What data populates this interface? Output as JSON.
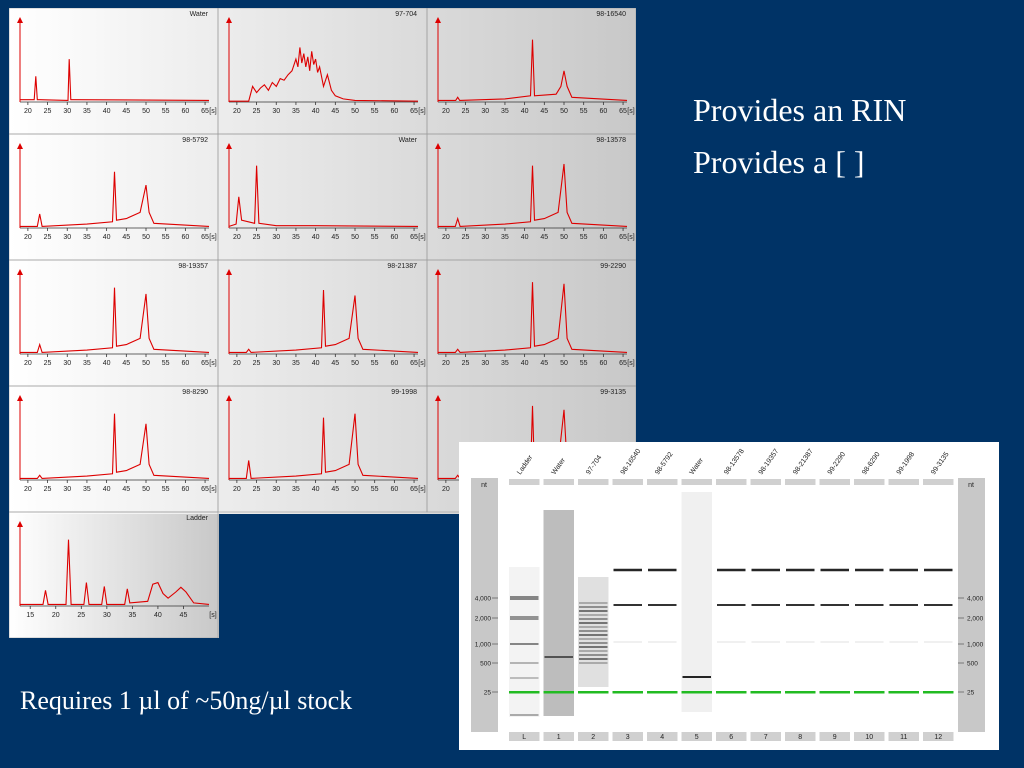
{
  "slide": {
    "bullets": [
      "Provides an RIN",
      "Provides a [ ]"
    ],
    "footer": "Requires 1 µl of ~50ng/µl stock"
  },
  "colors": {
    "background": "#003366",
    "trace": "#dd0000",
    "marker_band": "#22bb22",
    "plot_bg_light": "#ffffff",
    "plot_bg_dark": "#c8c8c8"
  },
  "chart_data": [
    {
      "type": "line",
      "title": "Water",
      "x_ticks": [
        20,
        25,
        30,
        35,
        40,
        45,
        50,
        55,
        60,
        65
      ],
      "x_unit": "[s]",
      "xlim": [
        18,
        66
      ],
      "ylim": [
        0,
        100
      ],
      "series": [
        {
          "x": [
            18,
            21.6,
            22,
            22.4,
            23,
            30.2,
            30.5,
            30.9,
            31.5,
            66
          ],
          "y": [
            3,
            3,
            33,
            3,
            3,
            2,
            55,
            3,
            3,
            2
          ]
        }
      ]
    },
    {
      "type": "line",
      "title": "97-704",
      "x_ticks": [
        20,
        25,
        30,
        35,
        40,
        45,
        50,
        55,
        60,
        65
      ],
      "x_unit": "[s]",
      "xlim": [
        18,
        66
      ],
      "ylim": [
        0,
        100
      ],
      "series": [
        {
          "x": [
            18,
            23,
            24,
            25,
            26,
            27,
            28,
            29,
            30,
            31,
            32,
            33,
            34,
            35,
            35.5,
            36,
            36.5,
            37,
            37.5,
            38,
            38.5,
            39,
            39.5,
            40,
            40.5,
            41,
            42,
            43,
            44,
            45,
            47,
            50,
            66
          ],
          "y": [
            1,
            1,
            20,
            12,
            18,
            22,
            15,
            25,
            20,
            30,
            28,
            35,
            40,
            55,
            45,
            70,
            50,
            62,
            45,
            58,
            40,
            65,
            48,
            55,
            38,
            45,
            20,
            35,
            15,
            8,
            4,
            2,
            1
          ]
        }
      ]
    },
    {
      "type": "line",
      "title": "98-16540",
      "x_ticks": [
        20,
        25,
        30,
        35,
        40,
        45,
        50,
        55,
        60,
        65
      ],
      "x_unit": "[s]",
      "xlim": [
        18,
        66
      ],
      "ylim": [
        0,
        100
      ],
      "series": [
        {
          "x": [
            18,
            22.5,
            23,
            23.5,
            35,
            41.5,
            42,
            42.5,
            48,
            49.2,
            50,
            50.8,
            52,
            66
          ],
          "y": [
            2,
            2,
            6,
            2,
            4,
            8,
            80,
            8,
            10,
            20,
            40,
            20,
            6,
            2
          ]
        }
      ]
    },
    {
      "type": "line",
      "title": "98-5792",
      "x_ticks": [
        20,
        25,
        30,
        35,
        40,
        45,
        50,
        55,
        60,
        65
      ],
      "x_unit": "[s]",
      "xlim": [
        18,
        66
      ],
      "ylim": [
        0,
        100
      ],
      "series": [
        {
          "x": [
            18,
            22.4,
            23,
            23.6,
            35,
            41.5,
            42,
            42.5,
            45,
            48.5,
            50,
            50.8,
            52,
            66
          ],
          "y": [
            2,
            2,
            18,
            2,
            5,
            8,
            72,
            10,
            12,
            20,
            55,
            20,
            6,
            2
          ]
        }
      ]
    },
    {
      "type": "line",
      "title": "Water",
      "x_ticks": [
        20,
        25,
        30,
        35,
        40,
        45,
        50,
        55,
        60,
        65
      ],
      "x_unit": "[s]",
      "xlim": [
        18,
        66
      ],
      "ylim": [
        0,
        100
      ],
      "series": [
        {
          "x": [
            18,
            19.8,
            20.5,
            21.2,
            24.5,
            25,
            25.6,
            30,
            40,
            66
          ],
          "y": [
            2,
            5,
            40,
            10,
            6,
            80,
            6,
            3,
            3,
            2
          ]
        }
      ]
    },
    {
      "type": "line",
      "title": "98-13578",
      "x_ticks": [
        20,
        25,
        30,
        35,
        40,
        45,
        50,
        55,
        60,
        65
      ],
      "x_unit": "[s]",
      "xlim": [
        18,
        66
      ],
      "ylim": [
        0,
        100
      ],
      "series": [
        {
          "x": [
            18,
            22.4,
            23,
            23.6,
            35,
            41.5,
            42,
            42.5,
            45,
            48.5,
            50,
            50.8,
            52,
            66
          ],
          "y": [
            2,
            2,
            12,
            2,
            5,
            8,
            80,
            10,
            12,
            20,
            82,
            20,
            6,
            2
          ]
        }
      ]
    },
    {
      "type": "line",
      "title": "98-19357",
      "x_ticks": [
        20,
        25,
        30,
        35,
        40,
        45,
        50,
        55,
        60,
        65
      ],
      "x_unit": "[s]",
      "xlim": [
        18,
        66
      ],
      "ylim": [
        0,
        100
      ],
      "series": [
        {
          "x": [
            18,
            22.4,
            23,
            23.6,
            35,
            41.5,
            42,
            42.5,
            45,
            48.5,
            50,
            50.8,
            52,
            66
          ],
          "y": [
            2,
            2,
            12,
            2,
            5,
            8,
            85,
            10,
            12,
            20,
            77,
            20,
            6,
            2
          ]
        }
      ]
    },
    {
      "type": "line",
      "title": "98-21387",
      "x_ticks": [
        20,
        25,
        30,
        35,
        40,
        45,
        50,
        55,
        60,
        65
      ],
      "x_unit": "[s]",
      "xlim": [
        18,
        66
      ],
      "ylim": [
        0,
        100
      ],
      "series": [
        {
          "x": [
            18,
            22.4,
            23,
            23.6,
            35,
            41.5,
            42,
            42.5,
            45,
            48.5,
            50,
            50.8,
            52,
            66
          ],
          "y": [
            2,
            2,
            6,
            2,
            5,
            8,
            82,
            10,
            12,
            20,
            75,
            20,
            6,
            2
          ]
        }
      ]
    },
    {
      "type": "line",
      "title": "99-2290",
      "x_ticks": [
        20,
        25,
        30,
        35,
        40,
        45,
        50,
        55,
        60,
        65
      ],
      "x_unit": "[s]",
      "xlim": [
        18,
        66
      ],
      "ylim": [
        0,
        100
      ],
      "series": [
        {
          "x": [
            18,
            22.4,
            23,
            23.6,
            35,
            41.5,
            42,
            42.5,
            45,
            48.5,
            50,
            50.8,
            52,
            66
          ],
          "y": [
            2,
            2,
            6,
            2,
            5,
            8,
            92,
            10,
            12,
            20,
            90,
            20,
            6,
            2
          ]
        }
      ]
    },
    {
      "type": "line",
      "title": "98-8290",
      "x_ticks": [
        20,
        25,
        30,
        35,
        40,
        45,
        50,
        55,
        60,
        65
      ],
      "x_unit": "[s]",
      "xlim": [
        18,
        66
      ],
      "ylim": [
        0,
        100
      ],
      "series": [
        {
          "x": [
            18,
            22.4,
            23,
            23.6,
            35,
            41.5,
            42,
            42.5,
            45,
            48.5,
            50,
            50.8,
            52,
            66
          ],
          "y": [
            2,
            2,
            6,
            2,
            5,
            8,
            85,
            10,
            12,
            20,
            72,
            20,
            6,
            2
          ]
        }
      ]
    },
    {
      "type": "line",
      "title": "99-1998",
      "x_ticks": [
        20,
        25,
        30,
        35,
        40,
        45,
        50,
        55,
        60,
        65
      ],
      "x_unit": "[s]",
      "xlim": [
        18,
        66
      ],
      "ylim": [
        0,
        100
      ],
      "series": [
        {
          "x": [
            18,
            22.4,
            23,
            23.6,
            35,
            41.5,
            42,
            42.5,
            45,
            48.5,
            50,
            50.8,
            52,
            66
          ],
          "y": [
            2,
            2,
            25,
            2,
            5,
            8,
            80,
            10,
            12,
            20,
            85,
            20,
            6,
            2
          ]
        }
      ]
    },
    {
      "type": "line",
      "title": "99-3135",
      "x_ticks": [
        20,
        25,
        30,
        35,
        40,
        45,
        50,
        55,
        60,
        65
      ],
      "x_unit": "[s]",
      "xlim": [
        18,
        66
      ],
      "ylim": [
        0,
        100
      ],
      "series": [
        {
          "x": [
            18,
            22.4,
            23,
            23.6,
            35,
            41.5,
            42,
            42.5,
            45,
            48.5,
            50,
            50.8,
            52,
            66
          ],
          "y": [
            2,
            2,
            6,
            2,
            5,
            8,
            95,
            10,
            12,
            20,
            90,
            20,
            6,
            2
          ]
        }
      ]
    },
    {
      "type": "line",
      "title": "Ladder",
      "x_ticks": [
        15,
        20,
        25,
        30,
        35,
        40,
        45
      ],
      "x_unit": "[s]",
      "xlim": [
        13,
        50
      ],
      "ylim": [
        0,
        100
      ],
      "series": [
        {
          "x": [
            13,
            17.5,
            18,
            18.5,
            22,
            22.5,
            23,
            25.5,
            26,
            26.5,
            29,
            29.5,
            30,
            33.5,
            34,
            34.5,
            38,
            39,
            40,
            41,
            42,
            43.5,
            44.5,
            45.5,
            47,
            50
          ],
          "y": [
            2,
            2,
            20,
            2,
            2,
            85,
            2,
            2,
            30,
            2,
            2,
            25,
            2,
            2,
            22,
            4,
            6,
            28,
            30,
            16,
            10,
            18,
            24,
            18,
            4,
            2
          ]
        }
      ]
    },
    {
      "type": "table",
      "title": "Gel image",
      "lane_names": [
        "Ladder",
        "Water",
        "97-704",
        "98-16540",
        "98-5792",
        "Water",
        "98-13578",
        "98-19357",
        "98-21387",
        "99-2290",
        "98-8290",
        "99-1998",
        "99-3135"
      ],
      "lane_numbers": [
        "L",
        "1",
        "2",
        "3",
        "4",
        "5",
        "6",
        "7",
        "8",
        "9",
        "10",
        "11",
        "12"
      ],
      "size_unit": "nt",
      "size_labels": [
        "4,000",
        "2,000",
        "1,000",
        "500",
        "25"
      ]
    }
  ]
}
